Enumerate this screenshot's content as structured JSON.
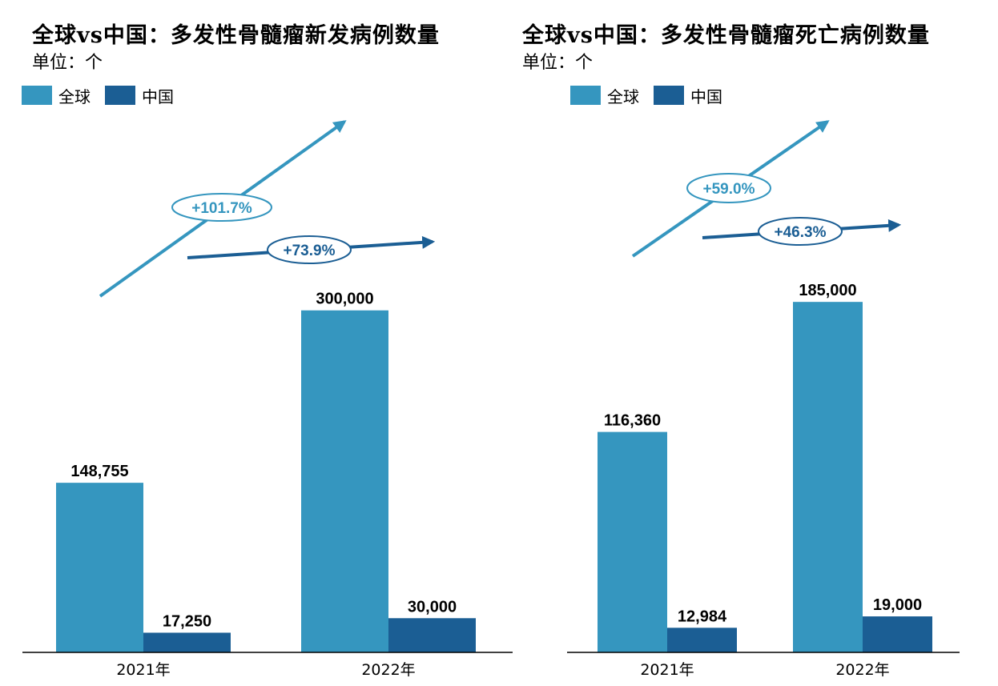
{
  "colors": {
    "global": "#3596bf",
    "china": "#1b5e94",
    "axis": "#000000"
  },
  "chart_data": [
    {
      "type": "bar",
      "title": "全球vs中国：多发性骨髓瘤新发病例数量",
      "unit": "单位：个",
      "categories": [
        "2021年",
        "2022年"
      ],
      "series": [
        {
          "name": "全球",
          "values": [
            148755,
            300000
          ],
          "labels": [
            "148,755",
            "300,000"
          ]
        },
        {
          "name": "中国",
          "values": [
            17250,
            30000
          ],
          "labels": [
            "17,250",
            "30,000"
          ]
        }
      ],
      "ylim": [
        0,
        330000
      ],
      "legend": "top-left",
      "annotations": [
        {
          "series": "全球",
          "text": "+101.7%"
        },
        {
          "series": "中国",
          "text": "+73.9%"
        }
      ]
    },
    {
      "type": "bar",
      "title": "全球vs中国：多发性骨髓瘤死亡病例数量",
      "unit": "单位：个",
      "categories": [
        "2021年",
        "2022年"
      ],
      "series": [
        {
          "name": "全球",
          "values": [
            116360,
            185000
          ],
          "labels": [
            "116,360",
            "185,000"
          ]
        },
        {
          "name": "中国",
          "values": [
            12984,
            19000
          ],
          "labels": [
            "12,984",
            "19,000"
          ]
        }
      ],
      "ylim": [
        0,
        210000
      ],
      "legend": "top-left",
      "annotations": [
        {
          "series": "全球",
          "text": "+59.0%"
        },
        {
          "series": "中国",
          "text": "+46.3%"
        }
      ]
    }
  ]
}
